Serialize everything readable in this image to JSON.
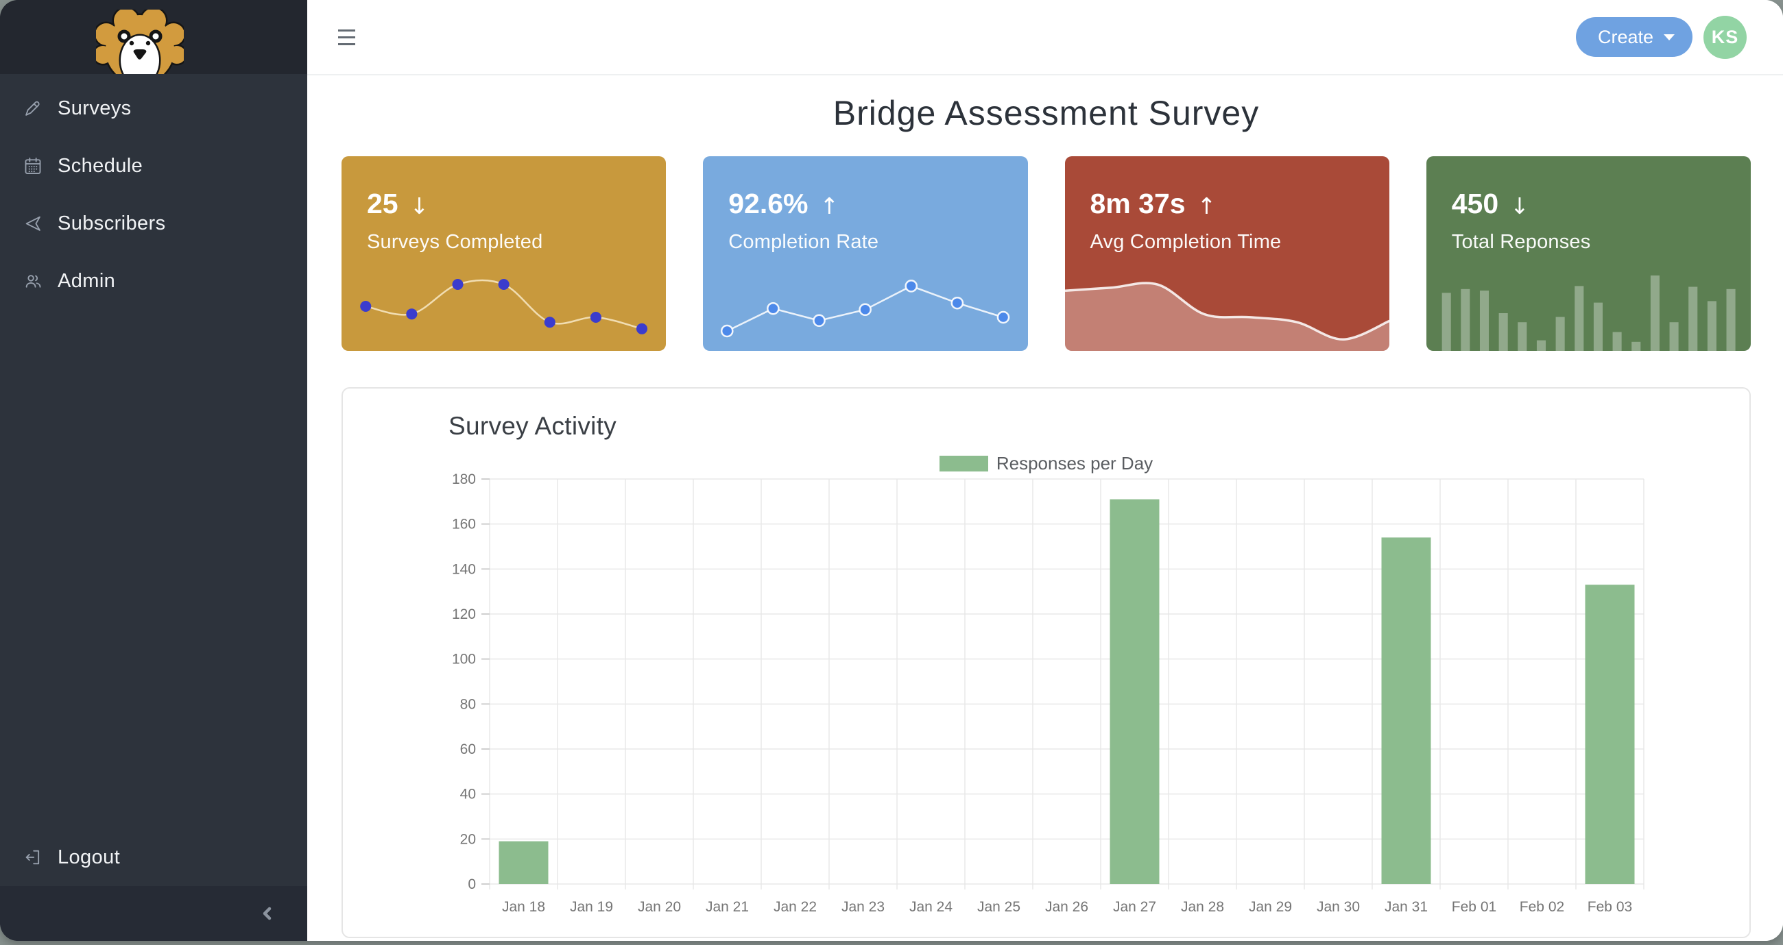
{
  "sidebar": {
    "logo": "lion-mascot",
    "items": [
      {
        "label": "Surveys",
        "icon": "pencil"
      },
      {
        "label": "Schedule",
        "icon": "calendar"
      },
      {
        "label": "Subscribers",
        "icon": "send"
      },
      {
        "label": "Admin",
        "icon": "users"
      }
    ],
    "logout_label": "Logout",
    "collapse_icon": "chevron-left"
  },
  "topbar": {
    "menu_icon": "hamburger",
    "create_button": {
      "label": "Create",
      "color": "#6fa2e1"
    },
    "avatar": {
      "initials": "KS",
      "color": "#92d4a4"
    }
  },
  "page": {
    "title": "Bridge Assessment Survey"
  },
  "stat_cards": [
    {
      "value": "25",
      "arrow": "↓",
      "label": "Surveys Completed",
      "color": "#c8993d",
      "spark": {
        "type": "line-dots",
        "smooth": true,
        "dot_color": "#3b3ccd",
        "line_color": "rgba(255,244,218,0.75)",
        "values": [
          45,
          31,
          85,
          85,
          16,
          25,
          4
        ]
      }
    },
    {
      "value": "92.6%",
      "arrow": "↑",
      "label": "Completion Rate",
      "color": "#79aade",
      "spark": {
        "type": "line-dots",
        "smooth": false,
        "dot_color": "#4c89ea",
        "ring": "rgba(255,255,255,0.9)",
        "line_color": "rgba(255,255,255,0.85)",
        "values": [
          0,
          41,
          19,
          39,
          82,
          51,
          25
        ]
      }
    },
    {
      "value": "8m 37s",
      "arrow": "↑",
      "label": "Avg Completion Time",
      "color": "#a94a38",
      "spark": {
        "type": "area",
        "smooth": true,
        "values": [
          82,
          87,
          92,
          44,
          39,
          31,
          3,
          33
        ]
      }
    },
    {
      "value": "450",
      "arrow": "↓",
      "label": "Total Reponses",
      "color": "#5c7f52",
      "spark": {
        "type": "bars",
        "values": [
          77,
          82,
          80,
          50,
          38,
          14,
          45,
          86,
          64,
          25,
          12,
          100,
          38,
          85,
          66,
          82
        ]
      }
    }
  ],
  "chart_data": {
    "type": "bar",
    "title": "Survey Activity",
    "legend": [
      {
        "label": "Responses per Day",
        "color": "#8cbc8e"
      }
    ],
    "categories": [
      "Jan 18",
      "Jan 19",
      "Jan 20",
      "Jan 21",
      "Jan 22",
      "Jan 23",
      "Jan 24",
      "Jan 25",
      "Jan 26",
      "Jan 27",
      "Jan 28",
      "Jan 29",
      "Jan 30",
      "Jan 31",
      "Feb 01",
      "Feb 02",
      "Feb 03"
    ],
    "values": [
      19,
      0,
      0,
      0,
      0,
      0,
      0,
      0,
      0,
      171,
      0,
      0,
      0,
      154,
      0,
      0,
      133
    ],
    "xlabel": "",
    "ylabel": "",
    "ylim": [
      0,
      180
    ],
    "ytick_step": 20,
    "grid": true,
    "legend_position": "top-center"
  }
}
